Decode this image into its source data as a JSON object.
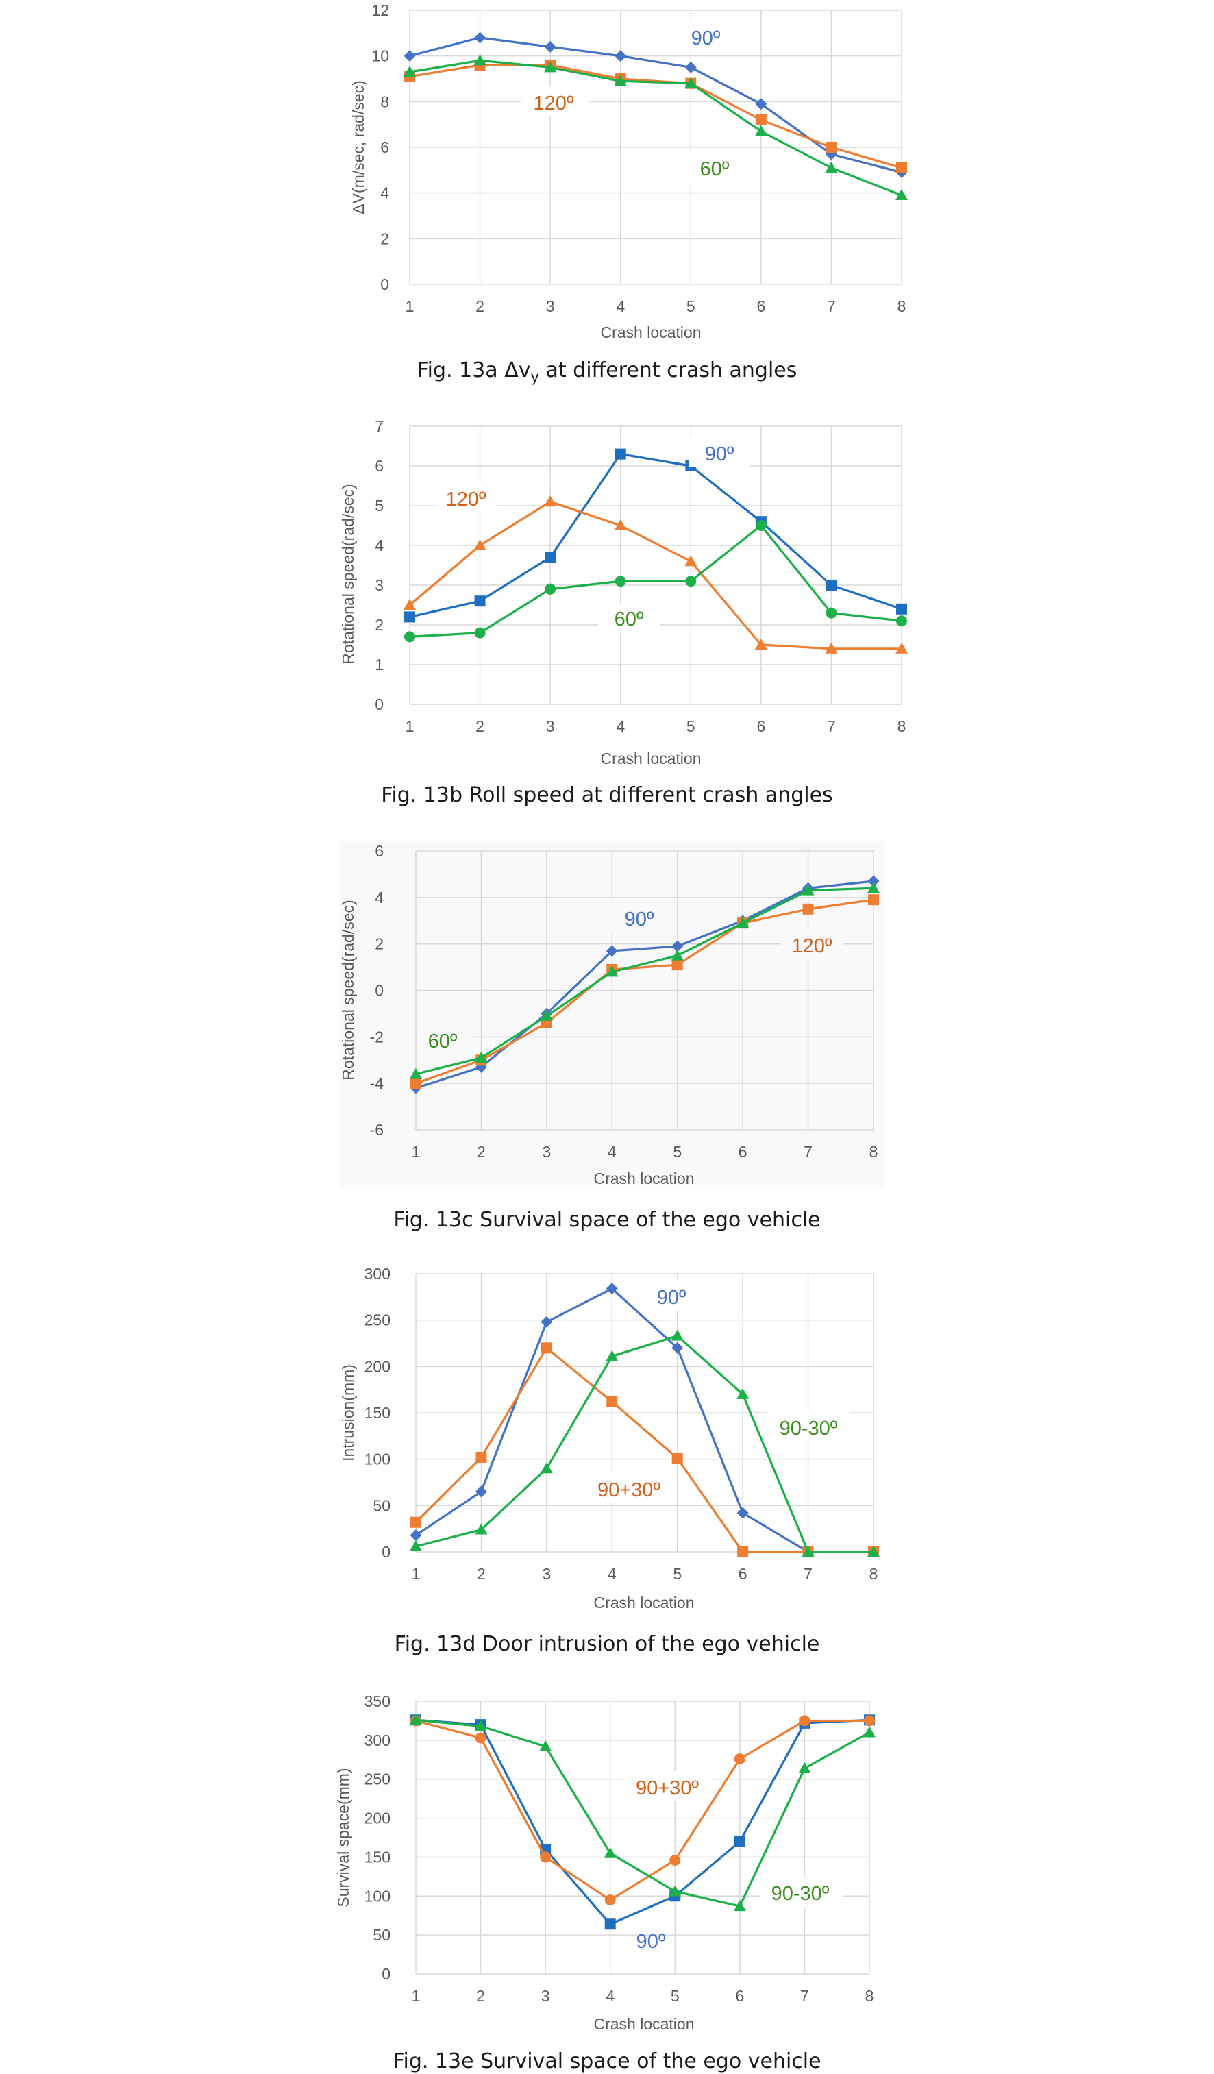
{
  "figure_captions": [
    "Fig. 13a Δvy at different crash angles",
    "Fig. 13b Roll speed at different crash angles",
    "Fig. 13c Survival space of the ego vehicle",
    "Fig. 13d Door intrusion of the ego vehicle",
    "Fig. 13e Survival space of the ego vehicle"
  ],
  "colors": {
    "blue": "#4472C4",
    "blue_sq": "#1F6FC0",
    "orange": "#ED7D31",
    "green": "#1BB04A",
    "label_blue": "#4472C4",
    "label_orange": "#D0601A",
    "label_green": "#3C8C1E"
  },
  "chart_data": [
    {
      "type": "line",
      "caption": "Fig. 13a Δvy at different crash angles",
      "xlabel": "Crash location",
      "ylabel": "ΔV(m/sec, rad/sec)",
      "x": [
        1,
        2,
        3,
        4,
        5,
        6,
        7,
        8
      ],
      "ylim": [
        0,
        12
      ],
      "yticks": [
        0,
        2,
        4,
        6,
        8,
        10,
        12
      ],
      "grid": true,
      "series": [
        {
          "name": "90º",
          "color": "blue",
          "marker": "diamond",
          "values": [
            10.0,
            10.8,
            10.4,
            10.0,
            9.5,
            7.9,
            5.7,
            4.9
          ]
        },
        {
          "name": "120º",
          "color": "orange",
          "marker": "square",
          "values": [
            9.1,
            9.6,
            9.6,
            9.0,
            8.8,
            7.2,
            6.0,
            5.1
          ]
        },
        {
          "name": "60º",
          "color": "green",
          "marker": "triangle",
          "values": [
            9.3,
            9.8,
            9.5,
            8.9,
            8.8,
            6.7,
            5.1,
            3.9
          ]
        }
      ]
    },
    {
      "type": "line",
      "caption": "Fig. 13b Roll speed at different crash angles",
      "xlabel": "Crash location",
      "ylabel": "Rotational speed(rad/sec)",
      "x": [
        1,
        2,
        3,
        4,
        5,
        6,
        7,
        8
      ],
      "ylim": [
        0,
        7
      ],
      "yticks": [
        0,
        1,
        2,
        3,
        4,
        5,
        6,
        7
      ],
      "grid": true,
      "series": [
        {
          "name": "90º",
          "color": "blue_sq",
          "marker": "square",
          "values": [
            2.2,
            2.6,
            3.7,
            6.3,
            6.0,
            4.6,
            3.0,
            2.4
          ]
        },
        {
          "name": "120º",
          "color": "orange",
          "marker": "triangle",
          "values": [
            2.5,
            4.0,
            5.1,
            4.5,
            3.6,
            1.5,
            1.4,
            1.4
          ]
        },
        {
          "name": "60º",
          "color": "green",
          "marker": "circle",
          "values": [
            1.7,
            1.8,
            2.9,
            3.1,
            3.1,
            4.5,
            2.3,
            2.1
          ]
        }
      ]
    },
    {
      "type": "line",
      "caption": "Fig. 13c Survival space of the ego vehicle",
      "xlabel": "Crash location",
      "ylabel": "Rotational speed(rad/sec)",
      "x": [
        1,
        2,
        3,
        4,
        5,
        6,
        7,
        8
      ],
      "ylim": [
        -6,
        6
      ],
      "yticks": [
        -6,
        -4,
        -2,
        0,
        2,
        4,
        6
      ],
      "grid": true,
      "series": [
        {
          "name": "90º",
          "color": "blue",
          "marker": "diamond",
          "values": [
            -4.2,
            -3.3,
            -1.0,
            1.7,
            1.9,
            3.0,
            4.4,
            4.7
          ]
        },
        {
          "name": "120º",
          "color": "orange",
          "marker": "square",
          "values": [
            -4.0,
            -3.0,
            -1.4,
            0.9,
            1.1,
            2.9,
            3.5,
            3.9
          ]
        },
        {
          "name": "60º",
          "color": "green",
          "marker": "triangle",
          "values": [
            -3.6,
            -2.9,
            -1.1,
            0.8,
            1.5,
            2.9,
            4.3,
            4.4
          ]
        }
      ]
    },
    {
      "type": "line",
      "caption": "Fig. 13d Door intrusion of the ego vehicle",
      "xlabel": "Crash location",
      "ylabel": "Intrusion(mm)",
      "x": [
        1,
        2,
        3,
        4,
        5,
        6,
        7,
        8
      ],
      "ylim": [
        0,
        300
      ],
      "yticks": [
        0,
        50,
        100,
        150,
        200,
        250,
        300
      ],
      "grid": true,
      "series": [
        {
          "name": "90º",
          "color": "blue",
          "marker": "diamond",
          "values": [
            18,
            65,
            248,
            284,
            220,
            42,
            0,
            0
          ]
        },
        {
          "name": "90+30º",
          "color": "orange",
          "marker": "square",
          "values": [
            32,
            102,
            220,
            162,
            101,
            0,
            0,
            0
          ]
        },
        {
          "name": "90-30º",
          "color": "green",
          "marker": "triangle",
          "values": [
            6,
            24,
            90,
            211,
            233,
            170,
            0,
            0
          ]
        }
      ]
    },
    {
      "type": "line",
      "caption": "Fig. 13e Survival space of the ego vehicle",
      "xlabel": "Crash location",
      "ylabel": "Survival space(mm)",
      "x": [
        1,
        2,
        3,
        4,
        5,
        6,
        7,
        8
      ],
      "ylim": [
        0,
        350
      ],
      "yticks": [
        0,
        50,
        100,
        150,
        200,
        250,
        300,
        350
      ],
      "grid": true,
      "series": [
        {
          "name": "90º",
          "color": "blue_sq",
          "marker": "square",
          "values": [
            326,
            320,
            160,
            64,
            100,
            170,
            322,
            326
          ]
        },
        {
          "name": "90+30º",
          "color": "orange",
          "marker": "circle",
          "values": [
            325,
            303,
            150,
            95,
            146,
            276,
            325,
            325
          ]
        },
        {
          "name": "90-30º",
          "color": "green",
          "marker": "triangle",
          "values": [
            326,
            318,
            292,
            155,
            106,
            87,
            264,
            310
          ]
        }
      ]
    }
  ]
}
